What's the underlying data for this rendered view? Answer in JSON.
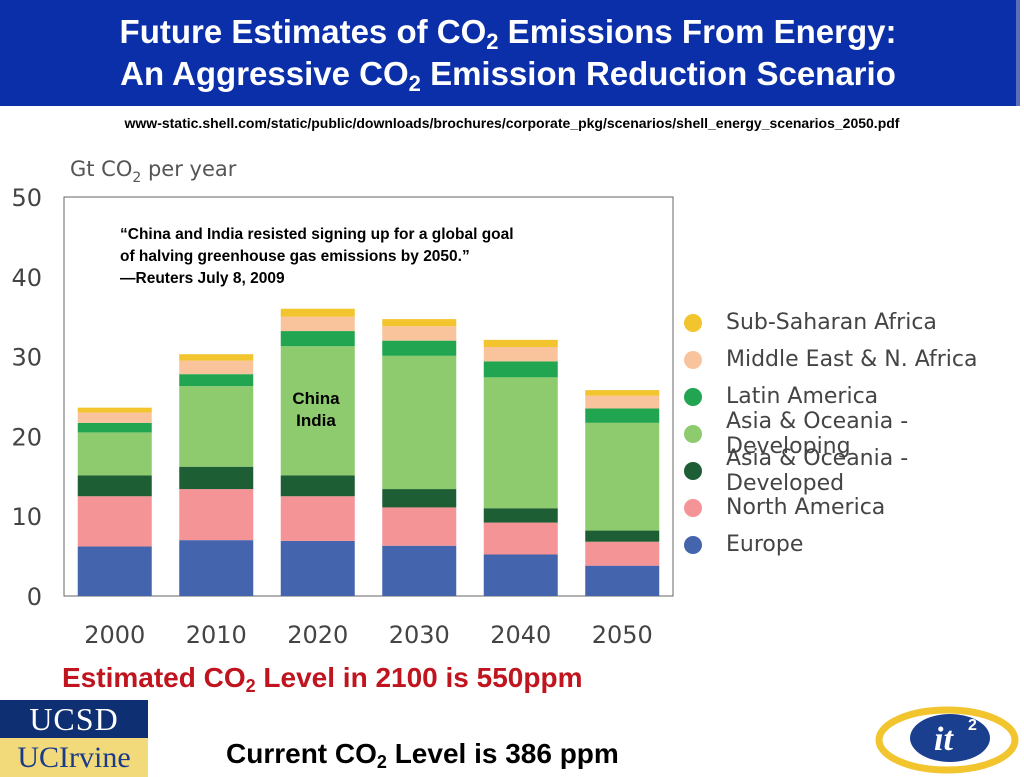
{
  "title": {
    "line1_pre": "Future Estimates of CO",
    "line1_sub": "2",
    "line1_post": " Emissions From Energy:",
    "line2_pre": "An Aggressive CO",
    "line2_sub": "2",
    "line2_post": " Emission Reduction Scenario"
  },
  "source_url": "www-static.shell.com/static/public/downloads/brochures/corporate_pkg/scenarios/shell_energy_scenarios_2050.pdf",
  "quote": {
    "line1": "“China and India resisted signing up for a global goal",
    "line2": "of halving greenhouse gas emissions by 2050.”",
    "line3": "—Reuters July 8, 2009"
  },
  "callout": {
    "line1": "China",
    "line2": "India"
  },
  "chart_data": {
    "type": "bar",
    "stacked": true,
    "ylabel_pre": "Gt CO",
    "ylabel_sub": "2",
    "ylabel_post": " per year",
    "ylim": [
      0,
      50
    ],
    "yticks": [
      0,
      10,
      20,
      30,
      40,
      50
    ],
    "categories": [
      "2000",
      "2010",
      "2020",
      "2030",
      "2040",
      "2050"
    ],
    "series": [
      {
        "name": "Europe",
        "color": "#4465ad",
        "values": [
          6.2,
          7.0,
          6.9,
          6.3,
          5.2,
          3.8
        ]
      },
      {
        "name": "North America",
        "color": "#f49496",
        "values": [
          6.3,
          6.4,
          5.6,
          4.8,
          4.0,
          3.0
        ]
      },
      {
        "name": "Asia & Oceania - Developed",
        "color": "#1e5e35",
        "values": [
          2.6,
          2.8,
          2.6,
          2.3,
          1.8,
          1.4
        ]
      },
      {
        "name": "Asia & Oceania - Developing",
        "color": "#8ecb6e",
        "values": [
          5.4,
          10.1,
          16.2,
          16.7,
          16.4,
          13.5
        ]
      },
      {
        "name": "Latin America",
        "color": "#22a550",
        "values": [
          1.2,
          1.5,
          1.9,
          1.9,
          2.0,
          1.8
        ]
      },
      {
        "name": "Middle East & N. Africa",
        "color": "#f9c49c",
        "values": [
          1.3,
          1.7,
          1.8,
          1.8,
          1.8,
          1.6
        ]
      },
      {
        "name": "Sub-Saharan Africa",
        "color": "#f2c42e",
        "values": [
          0.6,
          0.8,
          1.0,
          0.9,
          0.9,
          0.7
        ]
      }
    ]
  },
  "legend_order": [
    6,
    5,
    4,
    3,
    2,
    1,
    0
  ],
  "estimate": {
    "pre": "Estimated CO",
    "sub": "2",
    "post": " Level in  2100 is 550ppm"
  },
  "current": {
    "pre": "Current CO",
    "sub": "2",
    "post": " Level is 386 ppm"
  },
  "logos": {
    "ucsd": "UCSD",
    "uci": "UCIrvine",
    "it2_main": "it",
    "it2_sup": "2"
  }
}
